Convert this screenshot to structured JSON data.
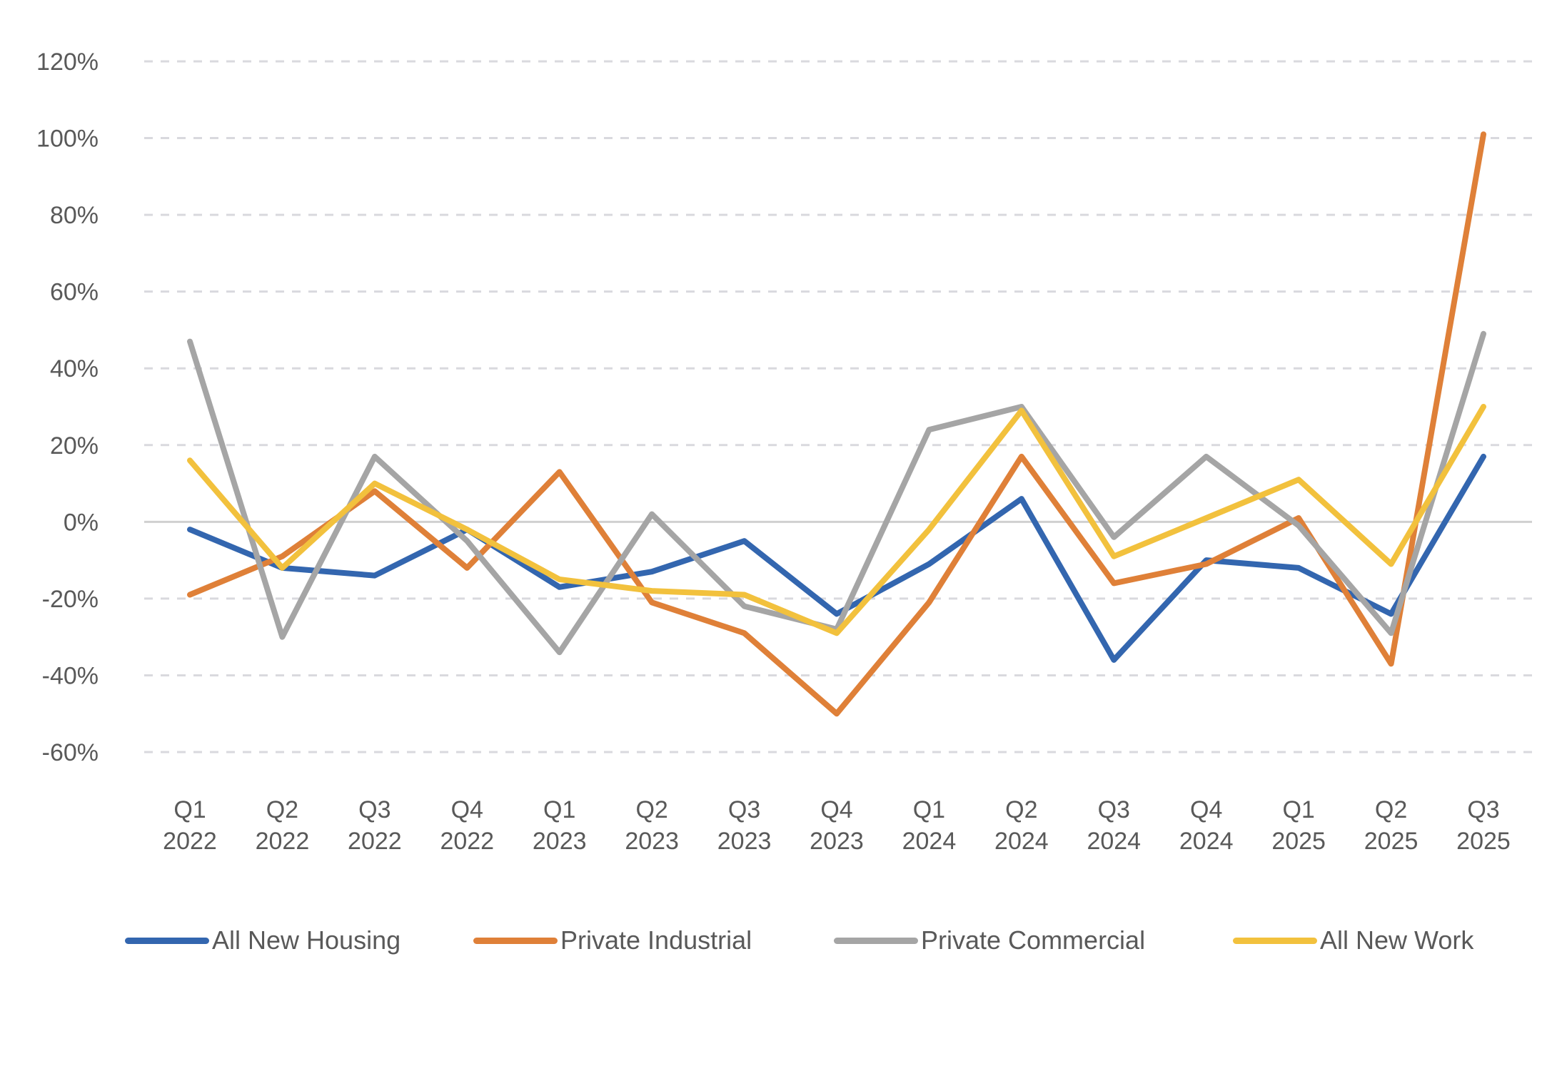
{
  "chart_data": {
    "type": "line",
    "title": "",
    "xlabel": "",
    "ylabel": "",
    "ylim": [
      -60,
      120
    ],
    "y_ticks": [
      120,
      100,
      80,
      60,
      40,
      20,
      0,
      -20,
      -40,
      -60
    ],
    "y_tick_labels": [
      "120%",
      "100%",
      "80%",
      "60%",
      "40%",
      "20%",
      "0%",
      "-20%",
      "-40%",
      "-60%"
    ],
    "grid": "horizontal dashed",
    "legend_position": "bottom",
    "categories": [
      {
        "q": "Q1",
        "year": "2022"
      },
      {
        "q": "Q2",
        "year": "2022"
      },
      {
        "q": "Q3",
        "year": "2022"
      },
      {
        "q": "Q4",
        "year": "2022"
      },
      {
        "q": "Q1",
        "year": "2023"
      },
      {
        "q": "Q2",
        "year": "2023"
      },
      {
        "q": "Q3",
        "year": "2023"
      },
      {
        "q": "Q4",
        "year": "2023"
      },
      {
        "q": "Q1",
        "year": "2024"
      },
      {
        "q": "Q2",
        "year": "2024"
      },
      {
        "q": "Q3",
        "year": "2024"
      },
      {
        "q": "Q4",
        "year": "2024"
      },
      {
        "q": "Q1",
        "year": "2025"
      },
      {
        "q": "Q2",
        "year": "2025"
      },
      {
        "q": "Q3",
        "year": "2025"
      }
    ],
    "series": [
      {
        "name": "All New Housing",
        "color": "#3366AF",
        "values": [
          -2,
          -12,
          -14,
          -2,
          -17,
          -13,
          -5,
          -24,
          -11,
          6,
          -36,
          -10,
          -12,
          -24,
          17
        ]
      },
      {
        "name": "Private Industrial",
        "color": "#DF8038",
        "values": [
          -19,
          -9,
          8,
          -12,
          13,
          -21,
          -29,
          -50,
          -21,
          17,
          -16,
          -11,
          1,
          -37,
          101
        ]
      },
      {
        "name": "Private Commercial",
        "color": "#A5A5A5",
        "values": [
          47,
          -30,
          17,
          -5,
          -34,
          2,
          -22,
          -28,
          24,
          30,
          -4,
          17,
          -1,
          -29,
          49
        ]
      },
      {
        "name": "All New Work",
        "color": "#F2C13D",
        "values": [
          16,
          -12,
          10,
          -2,
          -15,
          -18,
          -19,
          -29,
          -2,
          29,
          -9,
          1,
          11,
          -11,
          30
        ]
      }
    ]
  }
}
